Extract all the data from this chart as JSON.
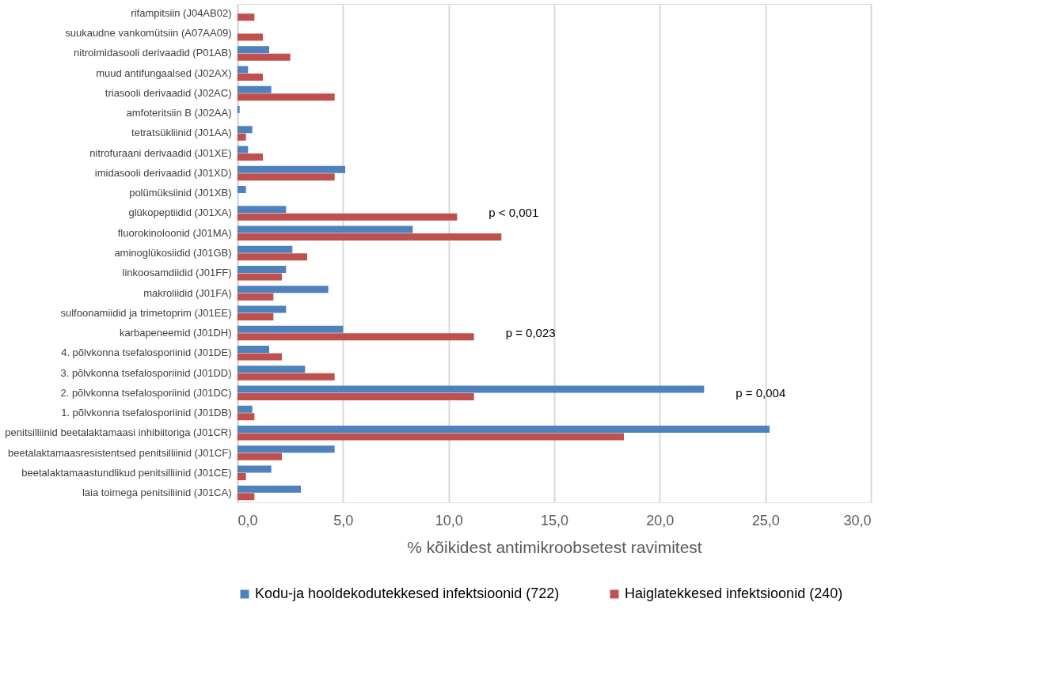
{
  "chart_data": {
    "type": "bar",
    "orientation": "horizontal",
    "xlabel": "% kõikidest antimikroobsetest ravimitest",
    "categories": [
      "rifampitsiin (J04AB02)",
      "suukaudne vankomütsiin (A07AA09)",
      "nitroimidasooli derivaadid (P01AB)",
      "muud antifungaalsed (J02AX)",
      "triasooli derivaadid (J02AC)",
      "amfoteritsiin B (J02AA)",
      "tetratsükliinid (J01AA)",
      "nitrofuraani derivaadid (J01XE)",
      "imidasooli derivaadid (J01XD)",
      "polümüksiinid (J01XB)",
      "glükopeptiidid (J01XA)",
      "fluorokinoloonid (J01MA)",
      "aminoglükosiidid (J01GB)",
      "linkoosamdiidid (J01FF)",
      "makroliidid (J01FA)",
      "sulfoonamiidid ja trimetoprim  (J01EE)",
      "karbapeneemid (J01DH)",
      "4. põlvkonna tsefalosporiinid (J01DE)",
      "3. põlvkonna tsefalosporiinid (J01DD)",
      "2. põlvkonna tsefalosporiinid (J01DC)",
      "1. põlvkonna tsefalosporiinid (J01DB)",
      "penitsilliinid beetalaktamaasi inhibiitoriga (J01CR)",
      "beetalaktamaasresistentsed penitsilliinid (J01CF)",
      "beetalaktamaastundlikud penitsilliinid (J01CE)",
      "laia toimega penitsiliinid (J01CA)"
    ],
    "series": [
      {
        "name": "Kodu-ja hooldekodutekkesed infektsioonid (722)",
        "color": "#4f81bd",
        "values": [
          0,
          0,
          1.5,
          0.5,
          1.6,
          0.1,
          0.7,
          0.5,
          5.1,
          0.4,
          2.3,
          8.3,
          2.6,
          2.3,
          4.3,
          2.3,
          5.0,
          1.5,
          3.2,
          22.1,
          0.7,
          25.2,
          4.6,
          1.6,
          3.0
        ]
      },
      {
        "name": "Haiglatekkesed infektsioonid (240)",
        "color": "#c0504d",
        "values": [
          0.8,
          1.2,
          2.5,
          1.2,
          4.6,
          0,
          0.4,
          1.2,
          4.6,
          0,
          10.4,
          12.5,
          3.3,
          2.1,
          1.7,
          1.7,
          11.2,
          2.1,
          4.6,
          11.2,
          0.8,
          18.3,
          2.1,
          0.4,
          0.8
        ]
      }
    ],
    "xlim": [
      0,
      30
    ],
    "xticks": [
      {
        "value": 0,
        "label": "0,0"
      },
      {
        "value": 5,
        "label": "5,0"
      },
      {
        "value": 10,
        "label": "10,0"
      },
      {
        "value": 15,
        "label": "15,0"
      },
      {
        "value": 20,
        "label": "20,0"
      },
      {
        "value": 25,
        "label": "25,0"
      },
      {
        "value": 30,
        "label": "30,0"
      }
    ],
    "grid": "x",
    "legend": "bottom",
    "annotations": [
      {
        "text": "p < 0,001",
        "x": 10.4,
        "y": "glükopeptiidid (J01XA)"
      },
      {
        "text": "p = 0,023",
        "x": 11.2,
        "y": "karbapeneemid (J01DH)"
      },
      {
        "text": "p = 0,004",
        "x": 22.1,
        "y": "2. põlvkonna tsefalosporiinid (J01DC)"
      }
    ]
  }
}
